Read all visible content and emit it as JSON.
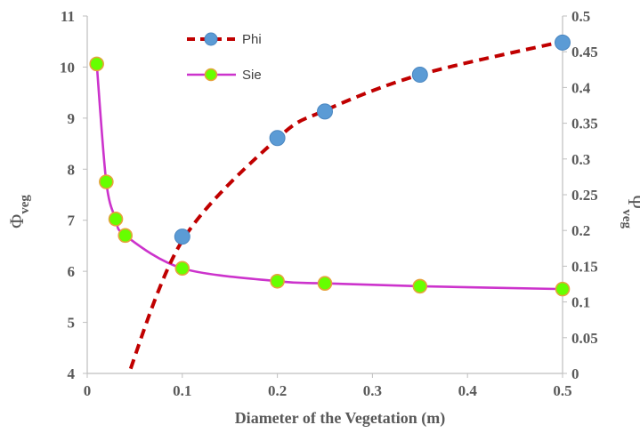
{
  "chart_data": {
    "type": "line",
    "xlabel": "Diameter of the Vegetation (m)",
    "ylabel_left": {
      "symbol": "Φ",
      "subscript": "veg"
    },
    "ylabel_right": {
      "symbol": "Ψ",
      "subscript": "veg"
    },
    "xlim": [
      0,
      0.5
    ],
    "ylim_left": [
      4,
      11
    ],
    "ylim_right": [
      0,
      0.5
    ],
    "x_ticks": [
      "0",
      "0.1",
      "0.2",
      "0.3",
      "0.4",
      "0.5"
    ],
    "y_left_ticks": [
      "4",
      "5",
      "6",
      "7",
      "8",
      "9",
      "10",
      "11"
    ],
    "y_right_ticks": [
      "0",
      "0.05",
      "0.1",
      "0.15",
      "0.2",
      "0.25",
      "0.3",
      "0.35",
      "0.4",
      "0.45",
      "0.5"
    ],
    "grid": false,
    "legend_position": "top-center",
    "series": [
      {
        "name": "Phi",
        "axis": "left",
        "line_color": "#c00000",
        "line_style": "dashed",
        "marker_color": "#5b9bd5",
        "marker_edge": "#5b9bd5",
        "curve_x": [
          0.04,
          0.1,
          0.2,
          0.25,
          0.35,
          0.5
        ],
        "curve_y": [
          3.8,
          6.6,
          8.6,
          9.15,
          9.85,
          10.5
        ],
        "x": [
          0.1,
          0.2,
          0.25,
          0.35,
          0.5
        ],
        "y": [
          6.68,
          8.61,
          9.13,
          9.85,
          10.48
        ]
      },
      {
        "name": "Sie",
        "axis": "right",
        "line_color": "#cc33cc",
        "line_style": "solid",
        "marker_color": "#66ff00",
        "marker_edge": "#e6a23c",
        "x": [
          0.01,
          0.02,
          0.03,
          0.04,
          0.1,
          0.2,
          0.25,
          0.35,
          0.5
        ],
        "y": [
          0.433,
          0.268,
          0.216,
          0.193,
          0.147,
          0.129,
          0.126,
          0.122,
          0.118
        ]
      }
    ]
  }
}
